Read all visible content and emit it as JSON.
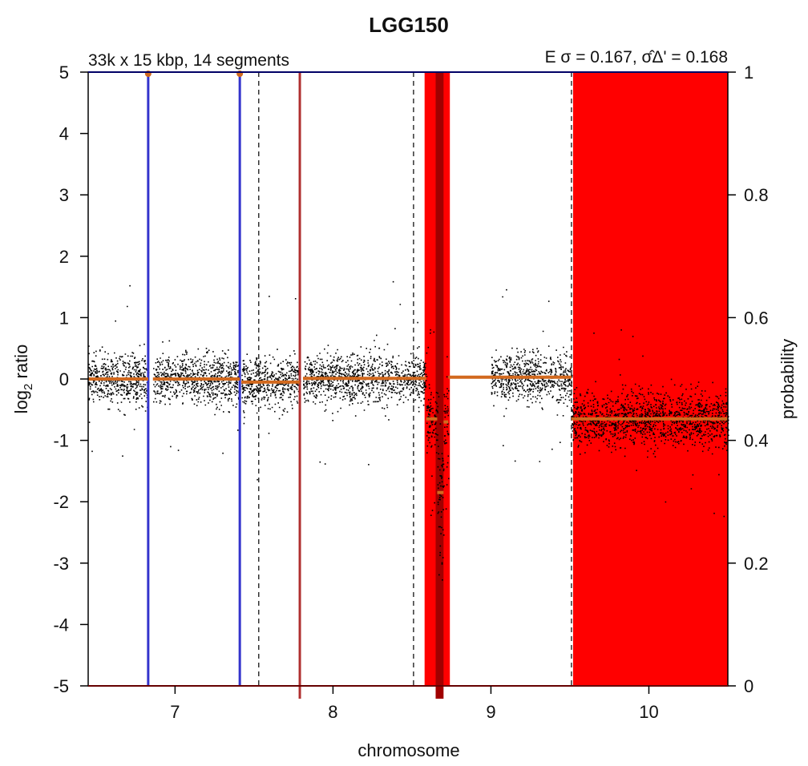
{
  "chart_data": {
    "type": "scatter",
    "title": "LGG150",
    "subtitle_left": "33k x 15 kbp, 14 segments",
    "subtitle_right": "E σ = 0.167, σ̂Δ' = 0.168",
    "xlabel": "chromosome",
    "ylabel_left": "log2 ratio",
    "ylabel_left_main": "log",
    "ylabel_left_sub": "2",
    "ylabel_left_rest": " ratio",
    "ylabel_right": "probability",
    "xlim": [
      6.45,
      10.5
    ],
    "ylim": [
      -5,
      5
    ],
    "y2lim": [
      0,
      1
    ],
    "x_ticks": [
      7,
      8,
      9,
      10
    ],
    "x_tick_labels": [
      "7",
      "8",
      "9",
      "10"
    ],
    "y_ticks": [
      5,
      4,
      3,
      2,
      1,
      0,
      -1,
      -2,
      -3,
      -4,
      -5
    ],
    "y_tick_labels": [
      "5",
      "4",
      "3",
      "2",
      "1",
      "0",
      "-1",
      "-2",
      "-3",
      "-4",
      "-5"
    ],
    "y2_ticks": [
      1,
      0.8,
      0.6,
      0.4,
      0.2,
      0
    ],
    "y2_tick_labels": [
      "1",
      "0.8",
      "0.6",
      "0.4",
      "0.2",
      "0"
    ],
    "grid": false,
    "point_color": "#000000",
    "segment_color": "#d2691e",
    "loss_region_color": "#ff0000",
    "deep_loss_color": "#a00000",
    "chromosome_boundaries": [
      6.83,
      7.53,
      8.51,
      9.51
    ],
    "data_regions": [
      {
        "x0": 6.45,
        "x1": 6.83,
        "mean": 0.0,
        "sd": 0.2
      },
      {
        "x0": 6.86,
        "x1": 7.41,
        "mean": 0.0,
        "sd": 0.2
      },
      {
        "x0": 7.42,
        "x1": 7.79,
        "mean": -0.05,
        "sd": 0.2
      },
      {
        "x0": 7.81,
        "x1": 8.59,
        "mean": 0.01,
        "sd": 0.2
      },
      {
        "x0": 8.59,
        "x1": 8.66,
        "mean": -0.65,
        "sd": 0.25
      },
      {
        "x0": 8.66,
        "x1": 8.7,
        "mean": -1.85,
        "sd": 0.5
      },
      {
        "x0": 8.7,
        "x1": 8.73,
        "mean": -0.7,
        "sd": 0.3
      },
      {
        "x0": 9.0,
        "x1": 9.51,
        "mean": 0.03,
        "sd": 0.2
      },
      {
        "x0": 9.51,
        "x1": 10.5,
        "mean": -0.65,
        "sd": 0.22
      }
    ],
    "segments": [
      {
        "x0": 6.45,
        "x1": 6.83,
        "y": 0.0
      },
      {
        "x0": 6.86,
        "x1": 7.41,
        "y": 0.0
      },
      {
        "x0": 7.42,
        "x1": 7.79,
        "y": -0.05
      },
      {
        "x0": 7.81,
        "x1": 8.59,
        "y": 0.01
      },
      {
        "x0": 8.59,
        "x1": 8.66,
        "y": -0.65
      },
      {
        "x0": 8.66,
        "x1": 8.7,
        "y": -1.85
      },
      {
        "x0": 8.7,
        "x1": 8.73,
        "y": -0.7
      },
      {
        "x0": 8.73,
        "x1": 9.51,
        "y": 0.03
      },
      {
        "x0": 9.51,
        "x1": 10.5,
        "y": -0.65
      }
    ],
    "loss_regions": [
      {
        "x0": 8.58,
        "x1": 8.74,
        "p": 1.0
      },
      {
        "x0": 9.52,
        "x1": 10.5,
        "p": 1.0
      }
    ],
    "deep_loss_regions": [
      {
        "x0": 8.65,
        "x1": 8.7,
        "p": 1.0
      }
    ],
    "amplification_lines": [
      {
        "x": 6.83,
        "p": 1.0
      },
      {
        "x": 7.41,
        "p": 1.0
      }
    ],
    "deletion_lines": [
      {
        "x": 7.79,
        "p": 1.0
      }
    ]
  }
}
